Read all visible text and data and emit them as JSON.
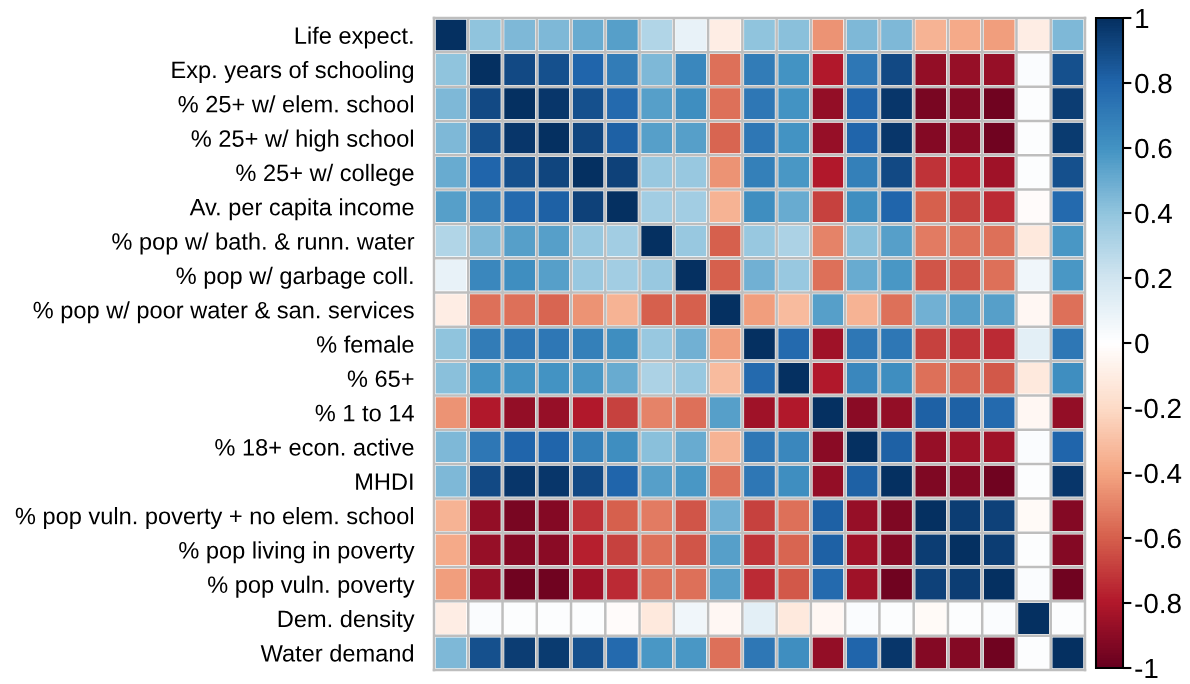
{
  "chart_data": {
    "type": "heatmap",
    "categories": [
      null,
      null,
      null,
      null,
      null,
      null,
      null,
      null,
      null,
      null,
      null,
      null,
      null,
      null,
      null,
      null,
      null,
      null,
      null
    ],
    "y_categories": [
      "Life expect.",
      "Exp. years of schooling",
      "% 25+ w/ elem. school",
      "% 25+ w/ high school",
      "% 25+ w/ college",
      "Av. per capita income",
      "% pop w/ bath. & runn. water",
      "% pop w/ garbage coll.",
      "% pop w/ poor water & san. services",
      "% female",
      "% 65+",
      "% 1 to 14",
      "% 18+ econ. active",
      "MHDI",
      "% pop vuln. poverty + no elem. school",
      "% pop living in poverty",
      "% pop vuln. poverty",
      "Dem. density",
      "Water demand"
    ],
    "cells": [
      [
        1,
        0.4,
        0.45,
        0.45,
        0.5,
        0.55,
        0.3,
        0.1,
        -0.1,
        0.4,
        0.42,
        -0.45,
        0.45,
        0.45,
        -0.35,
        -0.38,
        -0.42,
        -0.1,
        0.45
      ],
      [
        0.4,
        1,
        0.9,
        0.88,
        0.8,
        0.7,
        0.45,
        0.65,
        -0.55,
        0.7,
        0.6,
        -0.8,
        0.72,
        0.9,
        -0.88,
        -0.87,
        -0.87,
        0.02,
        0.88
      ],
      [
        0.45,
        0.9,
        1,
        0.97,
        0.88,
        0.78,
        0.55,
        0.62,
        -0.55,
        0.72,
        0.6,
        -0.88,
        0.8,
        0.97,
        -0.95,
        -0.92,
        -0.97,
        0.01,
        0.95
      ],
      [
        0.45,
        0.88,
        0.97,
        1,
        0.92,
        0.82,
        0.55,
        0.55,
        -0.58,
        0.72,
        0.6,
        -0.87,
        0.8,
        0.97,
        -0.92,
        -0.9,
        -0.97,
        0.01,
        0.96
      ],
      [
        0.5,
        0.8,
        0.88,
        0.92,
        1,
        0.93,
        0.38,
        0.38,
        -0.45,
        0.68,
        0.58,
        -0.8,
        0.68,
        0.9,
        -0.72,
        -0.78,
        -0.85,
        0.01,
        0.88
      ],
      [
        0.55,
        0.7,
        0.78,
        0.82,
        0.93,
        1,
        0.35,
        0.35,
        -0.35,
        0.62,
        0.5,
        -0.68,
        0.62,
        0.8,
        -0.6,
        -0.68,
        -0.75,
        -0.02,
        0.78
      ],
      [
        0.3,
        0.45,
        0.55,
        0.55,
        0.38,
        0.35,
        1,
        0.38,
        -0.6,
        0.38,
        0.32,
        -0.5,
        0.42,
        0.55,
        -0.52,
        -0.55,
        -0.55,
        -0.12,
        0.58
      ],
      [
        0.1,
        0.65,
        0.62,
        0.55,
        0.38,
        0.35,
        0.38,
        1,
        -0.6,
        0.48,
        0.38,
        -0.55,
        0.5,
        0.58,
        -0.63,
        -0.63,
        -0.55,
        0.07,
        0.58
      ],
      [
        -0.1,
        -0.55,
        -0.55,
        -0.58,
        -0.45,
        -0.35,
        -0.6,
        -0.6,
        1,
        -0.42,
        -0.32,
        0.55,
        -0.35,
        -0.55,
        0.48,
        0.55,
        0.55,
        -0.04,
        -0.55
      ],
      [
        0.4,
        0.7,
        0.72,
        0.72,
        0.68,
        0.62,
        0.38,
        0.48,
        -0.42,
        1,
        0.78,
        -0.85,
        0.72,
        0.72,
        -0.68,
        -0.72,
        -0.75,
        0.12,
        0.72
      ],
      [
        0.42,
        0.6,
        0.6,
        0.6,
        0.58,
        0.5,
        0.32,
        0.38,
        -0.32,
        0.78,
        1,
        -0.8,
        0.65,
        0.62,
        -0.55,
        -0.58,
        -0.62,
        -0.12,
        0.62
      ],
      [
        -0.45,
        -0.8,
        -0.88,
        -0.87,
        -0.8,
        -0.68,
        -0.5,
        -0.55,
        0.55,
        -0.85,
        -0.8,
        1,
        -0.9,
        -0.88,
        0.82,
        0.82,
        0.78,
        -0.04,
        -0.88
      ],
      [
        0.45,
        0.72,
        0.8,
        0.8,
        0.68,
        0.62,
        0.42,
        0.5,
        -0.35,
        0.72,
        0.65,
        -0.9,
        1,
        0.82,
        -0.87,
        -0.85,
        -0.85,
        0.02,
        0.8
      ],
      [
        0.45,
        0.9,
        0.97,
        0.97,
        0.9,
        0.8,
        0.55,
        0.58,
        -0.55,
        0.72,
        0.62,
        -0.88,
        0.82,
        1,
        -0.93,
        -0.92,
        -0.97,
        0.01,
        0.97
      ],
      [
        -0.35,
        -0.88,
        -0.95,
        -0.92,
        -0.72,
        -0.6,
        -0.52,
        -0.63,
        0.48,
        -0.68,
        -0.55,
        0.82,
        -0.87,
        -0.93,
        1,
        0.95,
        0.93,
        -0.03,
        -0.92
      ],
      [
        -0.38,
        -0.87,
        -0.92,
        -0.9,
        -0.78,
        -0.68,
        -0.55,
        -0.63,
        0.55,
        -0.72,
        -0.58,
        0.82,
        -0.85,
        -0.92,
        0.95,
        1,
        0.95,
        0.01,
        -0.92
      ],
      [
        -0.42,
        -0.87,
        -0.97,
        -0.97,
        -0.85,
        -0.75,
        -0.55,
        -0.55,
        0.55,
        -0.75,
        -0.62,
        0.78,
        -0.85,
        -0.97,
        0.93,
        0.95,
        1,
        0.02,
        -0.97
      ],
      [
        -0.1,
        0.02,
        0.01,
        0.01,
        0.01,
        -0.02,
        -0.12,
        0.07,
        -0.04,
        0.12,
        -0.12,
        -0.04,
        0.02,
        0.01,
        -0.03,
        0.01,
        0.02,
        1,
        0.01
      ],
      [
        0.45,
        0.88,
        0.95,
        0.96,
        0.88,
        0.78,
        0.58,
        0.58,
        -0.55,
        0.72,
        0.62,
        -0.88,
        0.8,
        0.97,
        -0.92,
        -0.92,
        -0.97,
        0.01,
        1
      ]
    ],
    "clim": [
      -1,
      1
    ],
    "cticks": [
      -1,
      -0.8,
      -0.6,
      -0.4,
      -0.2,
      0,
      0.2,
      0.4,
      0.6,
      0.8,
      1
    ],
    "grid": true
  }
}
